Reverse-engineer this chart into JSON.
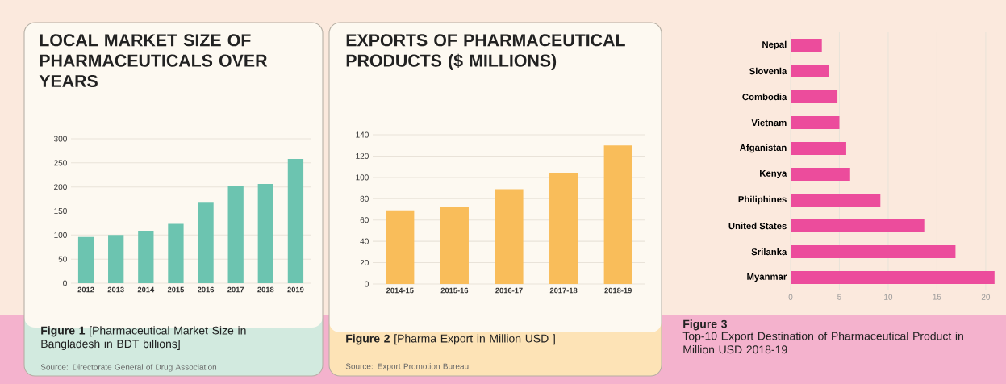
{
  "chart_data": [
    {
      "type": "bar",
      "title": "LOCAL MARKET SIZE OF PHARMACEUTICALS OVER YEARS",
      "categories": [
        "2012",
        "2013",
        "2014",
        "2015",
        "2016",
        "2017",
        "2018",
        "2019"
      ],
      "values": [
        96,
        100,
        109,
        123,
        167,
        201,
        206,
        258
      ],
      "color": "#6cc4b0",
      "ylim": [
        0,
        300
      ],
      "yticks": [
        0,
        50,
        100,
        150,
        200,
        250,
        300
      ],
      "grid": "y",
      "annotations": [
        "**Figure 1** [Pharmaceutical Market Size in Bangladesh in BDT billions]",
        "Source: Directorate General of Drug Association"
      ]
    },
    {
      "type": "bar",
      "title": "EXPORTS OF PHARMACEUTICAL PRODUCTS ($ MILLIONS)",
      "categories": [
        "2014-15",
        "2015-16",
        "2016-17",
        "2017-18",
        "2018-19"
      ],
      "values": [
        69,
        72,
        89,
        104,
        130
      ],
      "color": "#f9bd5a",
      "ylim": [
        0,
        140
      ],
      "yticks": [
        0,
        20,
        40,
        60,
        80,
        100,
        120,
        140
      ],
      "grid": "y",
      "annotations": [
        "**Figure 2** [Pharma Export in Million USD ]",
        "Source: Export Promotion Bureau"
      ]
    },
    {
      "type": "bar",
      "orientation": "horizontal",
      "categories": [
        "Nepal",
        "Slovenia",
        "Combodia",
        "Vietnam",
        "Afganistan",
        "Kenya",
        "Philiphines",
        "United States",
        "Srilanka",
        "Myanmar"
      ],
      "values": [
        3.2,
        3.9,
        4.8,
        5.0,
        5.7,
        6.1,
        9.2,
        13.7,
        16.9,
        20.9
      ],
      "color": "#ec4c9c",
      "xlim": [
        0,
        21
      ],
      "xticks": [
        0,
        5,
        10,
        15,
        20
      ],
      "grid": "x",
      "annotations": [
        "Figure 3",
        "Top-10 Export Destination of Pharmaceutical Product in Million USD 2018-19"
      ]
    }
  ]
}
